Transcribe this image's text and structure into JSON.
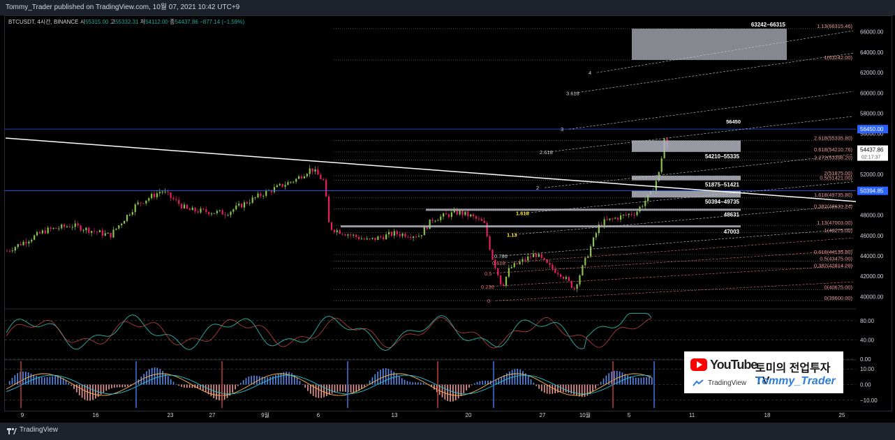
{
  "header": {
    "published_by": "Tommy_Trader published on TradingView.com, 10월 07, 2021 10:42 UTC+9"
  },
  "legend": {
    "symbol": "BTCUSDT, 4시간, BINANCE",
    "open_label": "시",
    "open": "55315.00",
    "high_label": "고",
    "high": "55332.31",
    "low_label": "저",
    "low": "54112.00",
    "close_label": "종",
    "close": "54437.86",
    "change": "−877.14 (−1.59%)"
  },
  "footer": {
    "brand": "TradingView"
  },
  "banner": {
    "youtube": "YouTube",
    "title": "토미의 전업투자TV",
    "tradingview": "TradingView",
    "name": "Tommy_Trader"
  },
  "colors": {
    "background": "#000000",
    "up": "#26a69a",
    "down": "#ef5350",
    "candle_up": "#8bc34a",
    "candle_down": "#e91e63",
    "zone": "#b2b5be",
    "price_line": "#2962ff",
    "fib": "#ef9a9a"
  },
  "chart_data": [
    {
      "type": "candlestick",
      "x_tick_labels": [
        "9",
        "16",
        "23",
        "27",
        "9월",
        "6",
        "13",
        "20",
        "27",
        "10월",
        "5",
        "11",
        "18",
        "25"
      ],
      "y_tick_labels": [
        "66000.00",
        "64000.00",
        "62000.00",
        "60000.00",
        "58000.00",
        "56000.00",
        "52000.00",
        "48000.00",
        "46000.00",
        "44000.00",
        "42000.00",
        "40000.00"
      ],
      "ylim": [
        39000,
        66800
      ],
      "price_tags": [
        {
          "label": "56450.00",
          "value": 56450
        },
        {
          "label": "54437.86",
          "value": 54437.86,
          "sub": "02:17:37"
        },
        {
          "label": "50394.85",
          "value": 50394.85
        }
      ],
      "zones": [
        {
          "label": "63242−66315",
          "low": 63242,
          "high": 66315
        },
        {
          "label": "54210−55335",
          "low": 54210,
          "high": 55335
        },
        {
          "label": "51875−51421",
          "low": 51421,
          "high": 51875
        },
        {
          "label": "50394−49735",
          "low": 49735,
          "high": 50394
        },
        {
          "label": "48631",
          "low": 48500,
          "high": 48631
        },
        {
          "label": "47003",
          "low": 46800,
          "high": 47003
        }
      ],
      "level_labels": [
        {
          "label": "56450",
          "value": 56450
        },
        {
          "label": "1.13(66315.46)",
          "value": 66315
        },
        {
          "label": "1(63242.00)",
          "value": 63242
        },
        {
          "label": "2.618(55335.80)",
          "value": 55335
        },
        {
          "label": "0.618(54210.76)",
          "value": 54210
        },
        {
          "label": "2.272(53398.20)",
          "value": 53398
        },
        {
          "label": "2(51875.00)",
          "value": 51875
        },
        {
          "label": "0.5(51421.00)",
          "value": 51421
        },
        {
          "label": "1.618(49735.80)",
          "value": 49735
        },
        {
          "label": "0.382(48631.24)",
          "value": 48631
        },
        {
          "label": "1.13(47003.00)",
          "value": 47003
        },
        {
          "label": "1(46275.00)",
          "value": 46275
        },
        {
          "label": "0.618(44135.80)",
          "value": 44135
        },
        {
          "label": "0.5(43475.00)",
          "value": 43475
        },
        {
          "label": "0.382(42814.20)",
          "value": 42814
        },
        {
          "label": "0(40675.00)",
          "value": 40675
        },
        {
          "label": "0(39600.00)",
          "value": 39600
        }
      ],
      "fan_labels": [
        {
          "label": "4",
          "value": 62000
        },
        {
          "label": "3.618",
          "value": 60000
        },
        {
          "label": "3",
          "value": 56450
        },
        {
          "label": "2.618",
          "value": 54210
        },
        {
          "label": "2",
          "value": 50700
        },
        {
          "label": "1.618",
          "value": 48200
        },
        {
          "label": "1.13",
          "value": 46100
        },
        {
          "label": "0.786",
          "value": 44000
        },
        {
          "label": "0.618",
          "value": 43300
        },
        {
          "label": "0.5",
          "value": 42300
        },
        {
          "label": "0.236",
          "value": 41000
        },
        {
          "label": "0",
          "value": 39600
        }
      ]
    },
    {
      "type": "line",
      "name": "oscillator",
      "y_tick_labels": [
        "80.00",
        "40.00",
        "0.00"
      ],
      "ylim": [
        0,
        100
      ]
    },
    {
      "type": "bar",
      "name": "histogram",
      "y_tick_labels": [
        "10.00",
        "0.00",
        "−10.00"
      ],
      "ylim": [
        -15,
        15
      ]
    }
  ]
}
